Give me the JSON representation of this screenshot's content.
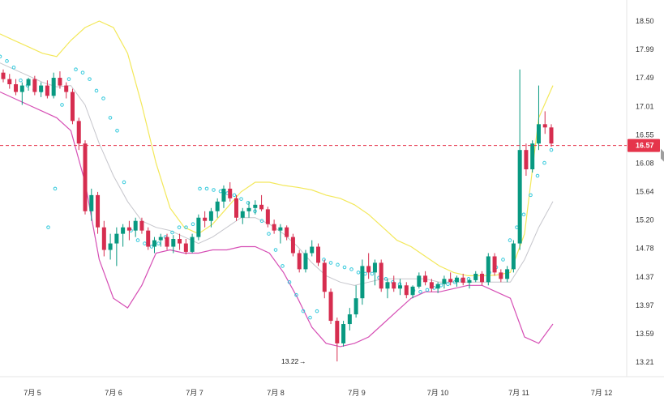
{
  "chart_data": {
    "type": "candlestick",
    "y_ticks": [
      "18.50",
      "17.99",
      "17.49",
      "17.01",
      "16.55",
      "16.08",
      "15.64",
      "15.20",
      "14.78",
      "14.37",
      "13.97",
      "13.59",
      "13.21"
    ],
    "x_labels": [
      "7月 5",
      "7月 6",
      "7月 7",
      "7月 8",
      "7月 9",
      "7月 10",
      "7月 11",
      "7月 12"
    ],
    "ylim": [
      13.0,
      18.85
    ],
    "current_price": "16.57",
    "current_price_value": 16.57,
    "low_annotation": "13.22",
    "low_annotation_value": 13.22,
    "colors": {
      "up": "#089981",
      "down": "#d62d4f",
      "upper_band": "#f3e85a",
      "lower_band": "#d64fb5",
      "middle_band": "#c6c6cc",
      "sar": "#33c9dc",
      "price_line": "#e5344b",
      "grid": "#f0f0f0"
    },
    "series": {
      "candles": [
        [
          17.7,
          17.75,
          17.55,
          17.6
        ],
        [
          17.6,
          17.68,
          17.45,
          17.52
        ],
        [
          17.52,
          17.6,
          17.35,
          17.4
        ],
        [
          17.4,
          17.55,
          17.2,
          17.5
        ],
        [
          17.5,
          17.62,
          17.42,
          17.6
        ],
        [
          17.6,
          17.65,
          17.35,
          17.4
        ],
        [
          17.4,
          17.55,
          17.32,
          17.5
        ],
        [
          17.5,
          17.58,
          17.3,
          17.34
        ],
        [
          17.34,
          17.7,
          17.3,
          17.62
        ],
        [
          17.62,
          17.72,
          17.45,
          17.5
        ],
        [
          17.5,
          17.55,
          17.3,
          17.4
        ],
        [
          17.4,
          17.45,
          16.9,
          16.95
        ],
        [
          16.95,
          17.0,
          16.5,
          16.6
        ],
        [
          16.6,
          16.65,
          15.5,
          15.55
        ],
        [
          15.55,
          15.9,
          15.4,
          15.8
        ],
        [
          15.8,
          15.85,
          15.2,
          15.3
        ],
        [
          15.3,
          15.4,
          14.85,
          14.95
        ],
        [
          14.95,
          15.2,
          14.8,
          15.05
        ],
        [
          15.05,
          15.3,
          14.7,
          15.2
        ],
        [
          15.2,
          15.35,
          15.0,
          15.3
        ],
        [
          15.3,
          15.4,
          15.1,
          15.25
        ],
        [
          15.25,
          15.45,
          15.15,
          15.4
        ],
        [
          15.4,
          15.45,
          15.2,
          15.25
        ],
        [
          15.25,
          15.3,
          14.95,
          15.0
        ],
        [
          15.0,
          15.15,
          14.9,
          15.1
        ],
        [
          15.1,
          15.2,
          15.0,
          15.15
        ],
        [
          15.15,
          15.2,
          14.95,
          15.0
        ],
        [
          15.0,
          15.18,
          14.9,
          15.12
        ],
        [
          15.12,
          15.2,
          14.95,
          15.05
        ],
        [
          15.05,
          15.12,
          14.88,
          14.92
        ],
        [
          14.92,
          15.2,
          14.9,
          15.15
        ],
        [
          15.15,
          15.5,
          15.1,
          15.45
        ],
        [
          15.45,
          15.55,
          15.3,
          15.4
        ],
        [
          15.4,
          15.6,
          15.3,
          15.55
        ],
        [
          15.55,
          15.75,
          15.45,
          15.7
        ],
        [
          15.7,
          15.95,
          15.6,
          15.9
        ],
        [
          15.9,
          16.0,
          15.7,
          15.75
        ],
        [
          15.75,
          15.8,
          15.4,
          15.45
        ],
        [
          15.45,
          15.6,
          15.35,
          15.55
        ],
        [
          15.55,
          15.7,
          15.45,
          15.6
        ],
        [
          15.6,
          15.72,
          15.5,
          15.65
        ],
        [
          15.65,
          15.8,
          15.55,
          15.58
        ],
        [
          15.58,
          15.62,
          15.3,
          15.35
        ],
        [
          15.35,
          15.42,
          15.2,
          15.25
        ],
        [
          15.25,
          15.35,
          15.05,
          15.3
        ],
        [
          15.3,
          15.33,
          15.1,
          15.15
        ],
        [
          15.15,
          15.2,
          14.85,
          14.9
        ],
        [
          14.9,
          14.95,
          14.6,
          14.65
        ],
        [
          14.65,
          14.95,
          14.6,
          14.9
        ],
        [
          14.9,
          15.1,
          14.85,
          15.0
        ],
        [
          15.0,
          15.05,
          14.7,
          14.75
        ],
        [
          14.75,
          14.8,
          14.2,
          14.3
        ],
        [
          14.3,
          14.35,
          13.8,
          13.85
        ],
        [
          13.85,
          13.9,
          13.22,
          13.5
        ],
        [
          13.5,
          13.85,
          13.45,
          13.8
        ],
        [
          13.8,
          14.05,
          13.7,
          13.95
        ],
        [
          13.95,
          14.4,
          13.9,
          14.2
        ],
        [
          14.2,
          14.8,
          14.1,
          14.7
        ],
        [
          14.7,
          14.9,
          14.5,
          14.6
        ],
        [
          14.6,
          14.8,
          14.4,
          14.75
        ],
        [
          14.75,
          14.8,
          14.3,
          14.35
        ],
        [
          14.35,
          14.5,
          14.2,
          14.45
        ],
        [
          14.45,
          14.55,
          14.3,
          14.35
        ],
        [
          14.35,
          14.5,
          14.25,
          14.4
        ],
        [
          14.4,
          14.45,
          14.2,
          14.25
        ],
        [
          14.25,
          14.4,
          14.2,
          14.38
        ],
        [
          14.38,
          14.6,
          14.35,
          14.55
        ],
        [
          14.55,
          14.62,
          14.4,
          14.45
        ],
        [
          14.45,
          14.5,
          14.3,
          14.35
        ],
        [
          14.35,
          14.45,
          14.28,
          14.42
        ],
        [
          14.42,
          14.55,
          14.35,
          14.5
        ],
        [
          14.5,
          14.6,
          14.4,
          14.45
        ],
        [
          14.45,
          14.55,
          14.38,
          14.52
        ],
        [
          14.52,
          14.58,
          14.4,
          14.44
        ],
        [
          14.44,
          14.5,
          14.35,
          14.48
        ],
        [
          14.48,
          14.62,
          14.45,
          14.58
        ],
        [
          14.58,
          14.62,
          14.4,
          14.45
        ],
        [
          14.45,
          14.9,
          14.4,
          14.85
        ],
        [
          14.85,
          14.9,
          14.55,
          14.6
        ],
        [
          14.6,
          14.65,
          14.45,
          14.5
        ],
        [
          14.5,
          14.7,
          14.45,
          14.65
        ],
        [
          14.65,
          15.1,
          14.6,
          15.05
        ],
        [
          15.05,
          17.75,
          14.95,
          16.5
        ],
        [
          16.5,
          16.6,
          16.1,
          16.2
        ],
        [
          16.2,
          16.65,
          16.15,
          16.6
        ],
        [
          16.6,
          17.5,
          16.5,
          16.9
        ],
        [
          16.9,
          17.1,
          16.75,
          16.85
        ],
        [
          16.85,
          16.9,
          16.55,
          16.6
        ]
      ],
      "upper_band": [
        18.3,
        18.2,
        18.1,
        18.0,
        17.95,
        18.2,
        18.4,
        18.5,
        18.4,
        18.0,
        17.2,
        16.3,
        15.6,
        15.3,
        15.2,
        15.35,
        15.6,
        15.85,
        16.0,
        16.0,
        15.95,
        15.92,
        15.88,
        15.8,
        15.75,
        15.65,
        15.5,
        15.3,
        15.1,
        15.0,
        14.85,
        14.7,
        14.6,
        14.55,
        14.55,
        14.56,
        14.6,
        15.2,
        17.0,
        17.5
      ],
      "lower_band": [
        17.4,
        17.3,
        17.2,
        17.1,
        17.0,
        16.8,
        16.0,
        14.8,
        14.2,
        14.05,
        14.4,
        14.9,
        14.95,
        14.9,
        14.9,
        14.95,
        14.95,
        15.0,
        15.0,
        14.9,
        14.6,
        14.2,
        13.75,
        13.5,
        13.45,
        13.5,
        13.6,
        13.8,
        14.0,
        14.2,
        14.3,
        14.3,
        14.35,
        14.4,
        14.4,
        14.3,
        14.2,
        13.6,
        13.5,
        13.8
      ],
      "middle_band": [
        17.85,
        17.75,
        17.65,
        17.55,
        17.48,
        17.5,
        17.2,
        16.6,
        16.1,
        15.7,
        15.4,
        15.3,
        15.25,
        15.15,
        15.05,
        15.15,
        15.3,
        15.45,
        15.45,
        15.35,
        15.2,
        15.0,
        14.75,
        14.55,
        14.45,
        14.4,
        14.45,
        14.5,
        14.5,
        14.5,
        14.5,
        14.45,
        14.45,
        14.45,
        14.45,
        14.45,
        14.45,
        14.8,
        15.3,
        15.7
      ],
      "sar": [
        17.95,
        17.88,
        17.78,
        17.58,
        17.5,
        17.44,
        17.42,
        15.3,
        15.9,
        17.2,
        17.6,
        17.75,
        17.7,
        17.6,
        17.42,
        17.3,
        17.0,
        16.8,
        16.0,
        15.25,
        15.1,
        15.05,
        15.0,
        15.05,
        15.15,
        15.22,
        15.3,
        15.3,
        15.35,
        15.9,
        15.9,
        15.88,
        15.86,
        15.83,
        15.8,
        15.74,
        15.68,
        15.55,
        15.4,
        15.2,
        14.95,
        14.7,
        14.45,
        14.25,
        14.0,
        13.9,
        14.0,
        14.8,
        14.75,
        14.72,
        14.68,
        14.65,
        14.6,
        14.58,
        14.58,
        14.52,
        14.5,
        14.45,
        14.42,
        14.35,
        14.32,
        14.3,
        14.33,
        14.36,
        14.4,
        14.42,
        14.45,
        14.48,
        14.5,
        14.52,
        14.55,
        14.6,
        14.68,
        14.8,
        15.1,
        15.3,
        15.5,
        15.8,
        16.1,
        16.3,
        16.5
      ]
    }
  }
}
